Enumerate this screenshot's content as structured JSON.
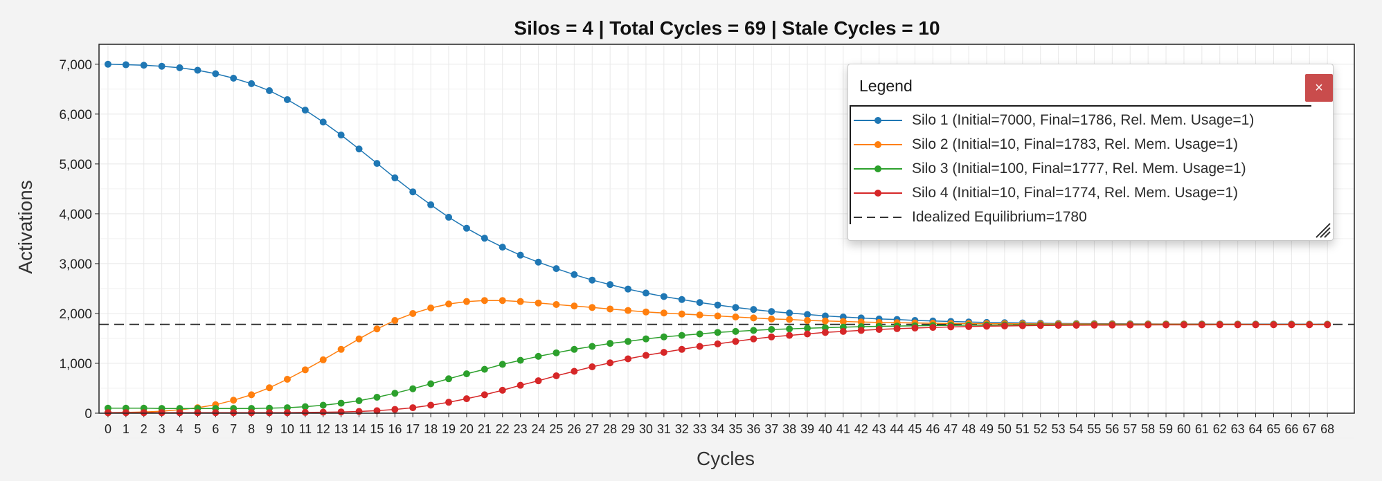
{
  "chart_data": {
    "type": "line",
    "title": "Silos = 4 | Total Cycles = 69 | Stale Cycles = 10",
    "xlabel": "Cycles",
    "ylabel": "Activations",
    "xlim": [
      -0.5,
      69.5
    ],
    "ylim": [
      0,
      7400
    ],
    "yticks": [
      0,
      1000,
      2000,
      3000,
      4000,
      5000,
      6000,
      7000
    ],
    "ytick_labels": [
      "0",
      "1,000",
      "2,000",
      "3,000",
      "4,000",
      "5,000",
      "6,000",
      "7,000"
    ],
    "xticks": [
      0,
      1,
      2,
      3,
      4,
      5,
      6,
      7,
      8,
      9,
      10,
      11,
      12,
      13,
      14,
      15,
      16,
      17,
      18,
      19,
      20,
      21,
      22,
      23,
      24,
      25,
      26,
      27,
      28,
      29,
      30,
      31,
      32,
      33,
      34,
      35,
      36,
      37,
      38,
      39,
      40,
      41,
      42,
      43,
      44,
      45,
      46,
      47,
      48,
      49,
      50,
      51,
      52,
      53,
      54,
      55,
      56,
      57,
      58,
      59,
      60,
      61,
      62,
      63,
      64,
      65,
      66,
      67,
      68
    ],
    "grid": true,
    "legend_position": "top-right",
    "x": [
      0,
      1,
      2,
      3,
      4,
      5,
      6,
      7,
      8,
      9,
      10,
      11,
      12,
      13,
      14,
      15,
      16,
      17,
      18,
      19,
      20,
      21,
      22,
      23,
      24,
      25,
      26,
      27,
      28,
      29,
      30,
      31,
      32,
      33,
      34,
      35,
      36,
      37,
      38,
      39,
      40,
      41,
      42,
      43,
      44,
      45,
      46,
      47,
      48,
      49,
      50,
      51,
      52,
      53,
      54,
      55,
      56,
      57,
      58,
      59,
      60,
      61,
      62,
      63,
      64,
      65,
      66,
      67,
      68
    ],
    "series": [
      {
        "name": "Silo 1 (Initial=7000, Final=1786, Rel. Mem. Usage=1)",
        "color": "#1f77b4",
        "values": [
          7000,
          6990,
          6980,
          6960,
          6930,
          6880,
          6810,
          6720,
          6610,
          6470,
          6290,
          6080,
          5840,
          5580,
          5300,
          5010,
          4720,
          4440,
          4180,
          3930,
          3710,
          3510,
          3330,
          3170,
          3030,
          2900,
          2780,
          2670,
          2580,
          2490,
          2410,
          2340,
          2280,
          2220,
          2170,
          2120,
          2080,
          2040,
          2010,
          1980,
          1950,
          1930,
          1910,
          1890,
          1880,
          1860,
          1850,
          1840,
          1830,
          1820,
          1815,
          1810,
          1805,
          1800,
          1798,
          1796,
          1794,
          1792,
          1791,
          1790,
          1789,
          1789,
          1788,
          1788,
          1787,
          1787,
          1787,
          1786,
          1786
        ]
      },
      {
        "name": "Silo 2 (Initial=10, Final=1783, Rel. Mem. Usage=1)",
        "color": "#ff7f0e",
        "values": [
          10,
          15,
          25,
          40,
          70,
          110,
          170,
          260,
          370,
          510,
          680,
          870,
          1070,
          1280,
          1490,
          1690,
          1860,
          2000,
          2110,
          2190,
          2240,
          2260,
          2260,
          2240,
          2210,
          2180,
          2150,
          2120,
          2090,
          2060,
          2030,
          2010,
          1990,
          1970,
          1950,
          1930,
          1910,
          1890,
          1880,
          1860,
          1850,
          1840,
          1830,
          1820,
          1815,
          1810,
          1805,
          1800,
          1798,
          1796,
          1794,
          1792,
          1791,
          1790,
          1789,
          1788,
          1787,
          1786,
          1786,
          1785,
          1785,
          1784,
          1784,
          1784,
          1783,
          1783,
          1783,
          1783,
          1783
        ]
      },
      {
        "name": "Silo 3 (Initial=100, Final=1777, Rel. Mem. Usage=1)",
        "color": "#2ca02c",
        "values": [
          100,
          100,
          100,
          95,
          95,
          95,
          95,
          95,
          95,
          100,
          110,
          130,
          160,
          200,
          250,
          320,
          400,
          490,
          590,
          690,
          790,
          880,
          980,
          1060,
          1140,
          1210,
          1280,
          1340,
          1400,
          1440,
          1490,
          1530,
          1560,
          1590,
          1620,
          1640,
          1660,
          1680,
          1690,
          1705,
          1715,
          1725,
          1735,
          1742,
          1748,
          1753,
          1758,
          1762,
          1765,
          1768,
          1770,
          1772,
          1773,
          1774,
          1775,
          1775,
          1776,
          1776,
          1776,
          1777,
          1777,
          1777,
          1777,
          1777,
          1777,
          1777,
          1777,
          1777,
          1777
        ]
      },
      {
        "name": "Silo 4 (Initial=10, Final=1774, Rel. Mem. Usage=1)",
        "color": "#d62728",
        "values": [
          10,
          10,
          10,
          10,
          10,
          10,
          10,
          10,
          10,
          10,
          10,
          15,
          20,
          25,
          35,
          50,
          75,
          110,
          160,
          220,
          290,
          370,
          460,
          560,
          650,
          750,
          840,
          930,
          1010,
          1090,
          1160,
          1220,
          1280,
          1340,
          1390,
          1440,
          1490,
          1530,
          1560,
          1590,
          1620,
          1640,
          1660,
          1680,
          1695,
          1708,
          1720,
          1730,
          1738,
          1745,
          1750,
          1755,
          1759,
          1762,
          1764,
          1766,
          1768,
          1769,
          1770,
          1771,
          1772,
          1772,
          1773,
          1773,
          1773,
          1774,
          1774,
          1774,
          1774
        ]
      }
    ],
    "reference_lines": [
      {
        "name": "Idealized Equilibrium=1780",
        "value": 1780,
        "color": "#333333",
        "dash": "dashed"
      }
    ]
  },
  "legend": {
    "header": "Legend",
    "close_glyph": "×"
  }
}
